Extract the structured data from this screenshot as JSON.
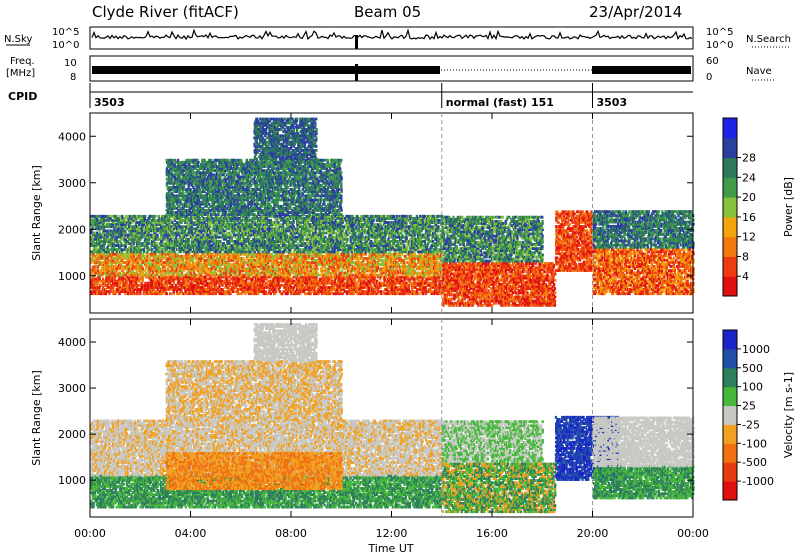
{
  "header": {
    "title": "Clyde River (fitACF)",
    "beam": "Beam 05",
    "date": "23/Apr/2014"
  },
  "top_panels": {
    "nsky_label": "N.Sky",
    "nsky_ticks": [
      "10^5",
      "10^0"
    ],
    "nsearch_label": "N.Search",
    "nsearch_ticks": [
      "10^5",
      "10^0"
    ],
    "freq_label_1": "Freq.",
    "freq_label_2": "[MHz]",
    "freq_ticks": [
      "10",
      "8"
    ],
    "nave_label": "Nave",
    "nave_ticks": [
      "60",
      "0"
    ],
    "cpid_label": "CPID",
    "cpid_segments": [
      {
        "start": 0,
        "end": 14,
        "label": "3503"
      },
      {
        "start": 14,
        "end": 20,
        "label": "normal (fast) 151"
      },
      {
        "start": 20,
        "end": 24,
        "label": "3503"
      }
    ]
  },
  "chart_data": [
    {
      "type": "heatmap",
      "title": "",
      "xlabel": "Time UT",
      "ylabel": "Slant Range [km]",
      "xlim": [
        0,
        24
      ],
      "ylim": [
        200,
        4500
      ],
      "x_ticks": [
        "00:00",
        "04:00",
        "08:00",
        "12:00",
        "16:00",
        "20:00",
        "00:00"
      ],
      "y_ticks": [
        "1000",
        "2000",
        "3000",
        "4000"
      ],
      "colorbar_label": "Power [dB]",
      "colorbar_ticks": [
        "4",
        "8",
        "12",
        "16",
        "20",
        "24",
        "28"
      ],
      "colorbar_colors": [
        "#1b24e6",
        "#2a3fa0",
        "#2e7a58",
        "#3f9b4a",
        "#86c23c",
        "#f2a50e",
        "#f27a0c",
        "#ef3b12",
        "#e01010"
      ]
    },
    {
      "type": "heatmap",
      "title": "",
      "xlabel": "Time UT",
      "ylabel": "Slant Range [km]",
      "xlim": [
        0,
        24
      ],
      "ylim": [
        200,
        4500
      ],
      "x_ticks": [
        "00:00",
        "04:00",
        "08:00",
        "12:00",
        "16:00",
        "20:00",
        "00:00"
      ],
      "y_ticks": [
        "1000",
        "2000",
        "3000",
        "4000"
      ],
      "colorbar_label": "Velocity [m s-1]",
      "colorbar_ticks": [
        "1000",
        "500",
        "100",
        "25",
        "-25",
        "-100",
        "-500",
        "-1000"
      ],
      "colorbar_colors": [
        "#1b24c8",
        "#2050a8",
        "#2f7f5c",
        "#46b83c",
        "#c8c8c4",
        "#f2a020",
        "#f07012",
        "#e83a10",
        "#e01010"
      ]
    }
  ]
}
